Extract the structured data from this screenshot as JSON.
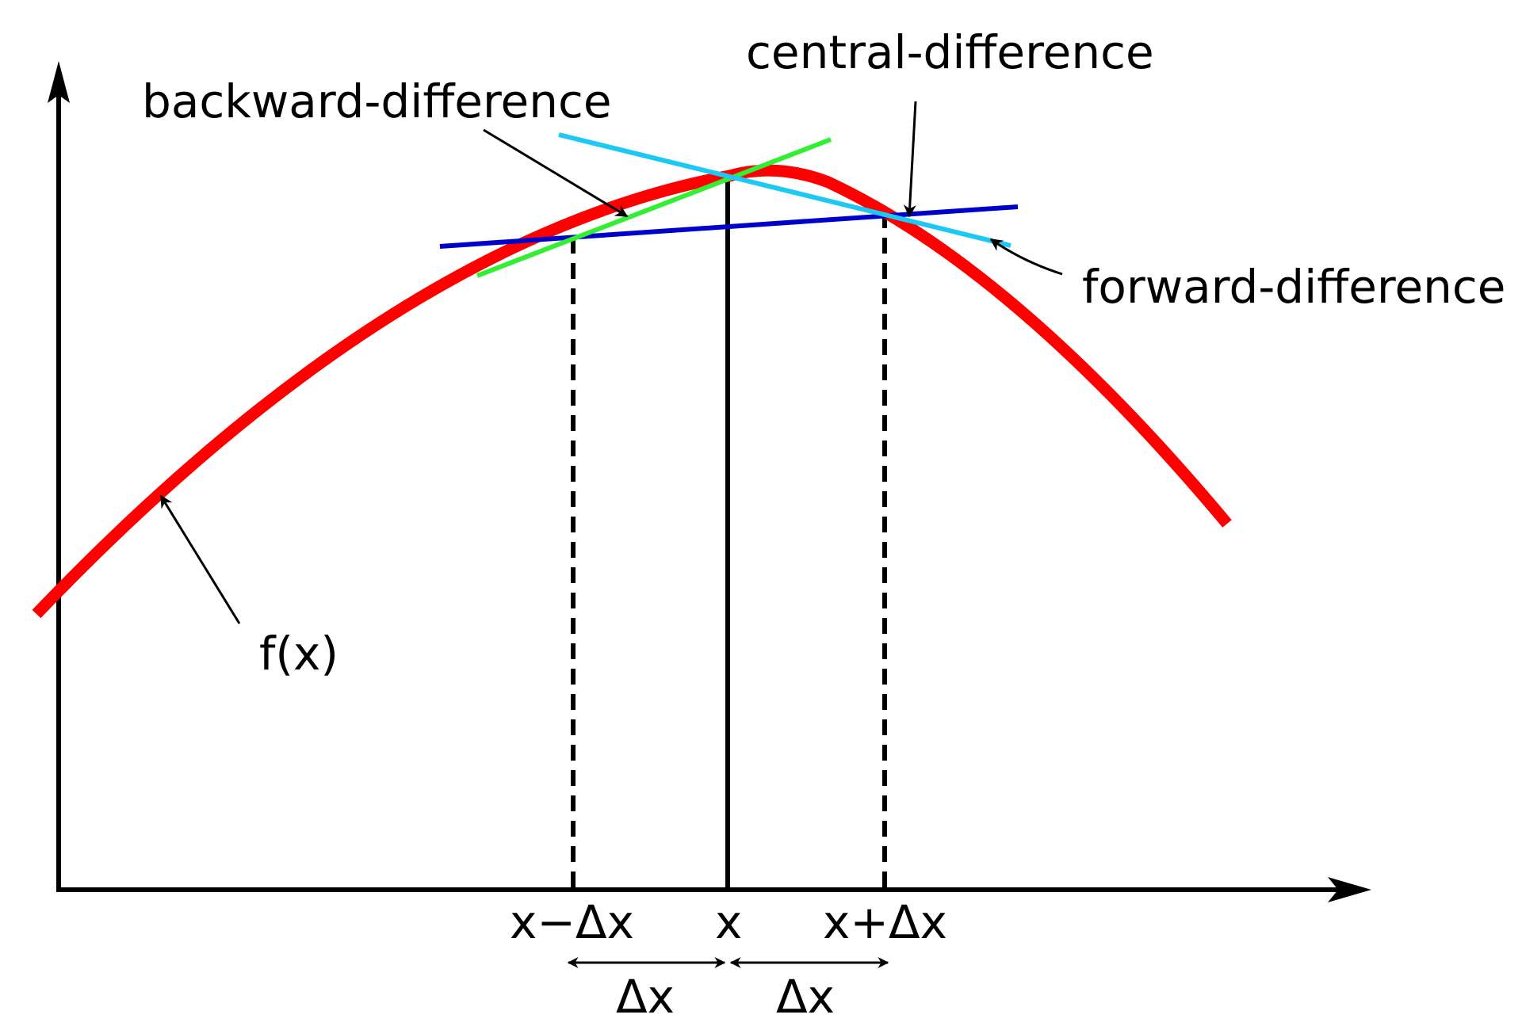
{
  "labels": {
    "central": "central-difference",
    "backward": "backward-difference",
    "forward": "forward-difference",
    "function": "f(x)",
    "x_minus": "x−Δx",
    "x": "x",
    "x_plus": "x+Δx",
    "delta_left": "Δx",
    "delta_right": "Δx"
  },
  "colors": {
    "curve": "#ff0000",
    "central_line": "#0000cc",
    "backward_line": "#33ee33",
    "forward_line": "#1ec8f5",
    "axes": "#000000",
    "background": "#ffffff"
  }
}
